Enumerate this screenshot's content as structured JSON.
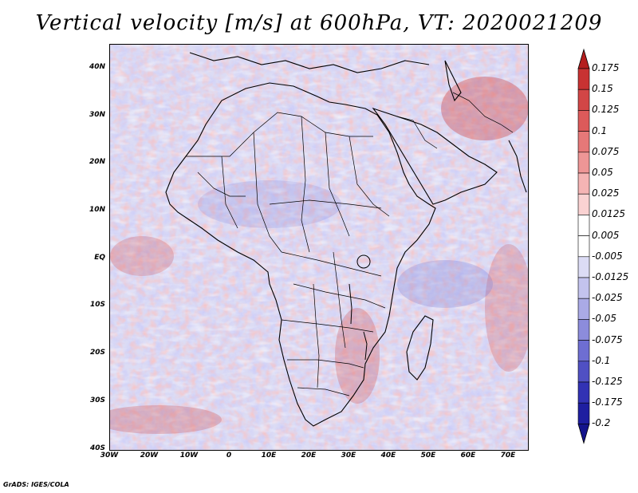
{
  "title": "Vertical velocity [m/s] at 600hPa, VT: 2020021209",
  "credit": "GrADS: IGES/COLA",
  "lat_labels": [
    "40N",
    "30N",
    "20N",
    "10N",
    "EQ",
    "10S",
    "20S",
    "30S",
    "40S"
  ],
  "lon_labels": [
    "30W",
    "20W",
    "10W",
    "0",
    "10E",
    "20E",
    "30E",
    "40E",
    "50E",
    "60E",
    "70E"
  ],
  "colorbar": {
    "labels": [
      "0.175",
      "0.15",
      "0.125",
      "0.1",
      "0.075",
      "0.05",
      "0.025",
      "0.0125",
      "0.005",
      "-0.005",
      "-0.0125",
      "-0.025",
      "-0.05",
      "-0.075",
      "-0.1",
      "-0.125",
      "-0.175",
      "-0.2"
    ],
    "colors": [
      "#b41e1e",
      "#c83232",
      "#d24646",
      "#dc5a5a",
      "#e67878",
      "#ee9696",
      "#f5b4b4",
      "#fad2d2",
      "#ffffff",
      "#ffffff",
      "#dcdcf5",
      "#c3c3ee",
      "#aaaae6",
      "#8c8cdc",
      "#6e6ed2",
      "#5050c3",
      "#3232b4",
      "#1e1ea0",
      "#14148c"
    ]
  },
  "chart_data": {
    "type": "heatmap",
    "title": "Vertical velocity [m/s] at 600hPa, VT: 2020021209",
    "variable": "Vertical velocity",
    "units": "m/s",
    "level": "600hPa",
    "valid_time": "2020021209",
    "lon_range": [
      -30,
      75
    ],
    "lat_range": [
      -40,
      45
    ],
    "levels": [
      -0.2,
      -0.175,
      -0.125,
      -0.1,
      -0.075,
      -0.05,
      -0.025,
      -0.0125,
      -0.005,
      0.005,
      0.0125,
      0.025,
      0.05,
      0.075,
      0.1,
      0.125,
      0.15,
      0.175
    ]
  }
}
